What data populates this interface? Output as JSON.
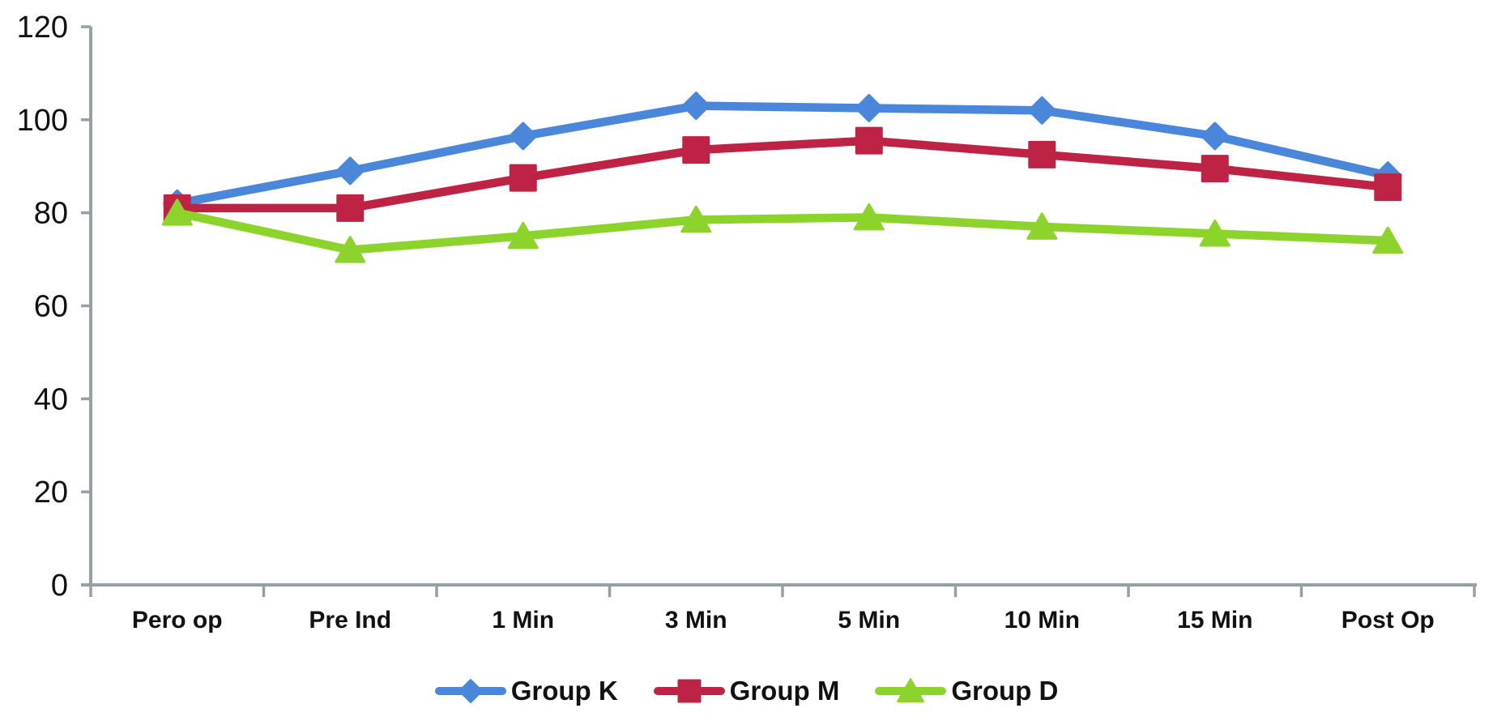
{
  "chart_data": {
    "type": "line",
    "title": "",
    "xlabel": "",
    "ylabel": "",
    "categories": [
      "Pero op",
      "Pre Ind",
      "1 Min",
      "3 Min",
      "5 Min",
      "10 Min",
      "15 Min",
      "Post Op"
    ],
    "series": [
      {
        "name": "Group K",
        "marker": "diamond",
        "color": "#4A86D9",
        "values": [
          82,
          89,
          96.5,
          103,
          102.5,
          102,
          96.5,
          88
        ]
      },
      {
        "name": "Group M",
        "marker": "square",
        "color": "#BE2345",
        "values": [
          81,
          81,
          87.5,
          93.5,
          95.5,
          92.5,
          89.5,
          85.5
        ]
      },
      {
        "name": "Group D",
        "marker": "triangle",
        "color": "#8CD32C",
        "values": [
          80,
          72,
          75,
          78.5,
          79,
          77,
          75.5,
          74
        ]
      }
    ],
    "ylim": [
      0,
      120
    ],
    "yticks": [
      0,
      20,
      40,
      60,
      80,
      100,
      120
    ],
    "grid": false,
    "legend_position": "bottom",
    "axis_color": "#94A0A3",
    "tick_label_color": "#111111",
    "background_color": "#ffffff"
  }
}
